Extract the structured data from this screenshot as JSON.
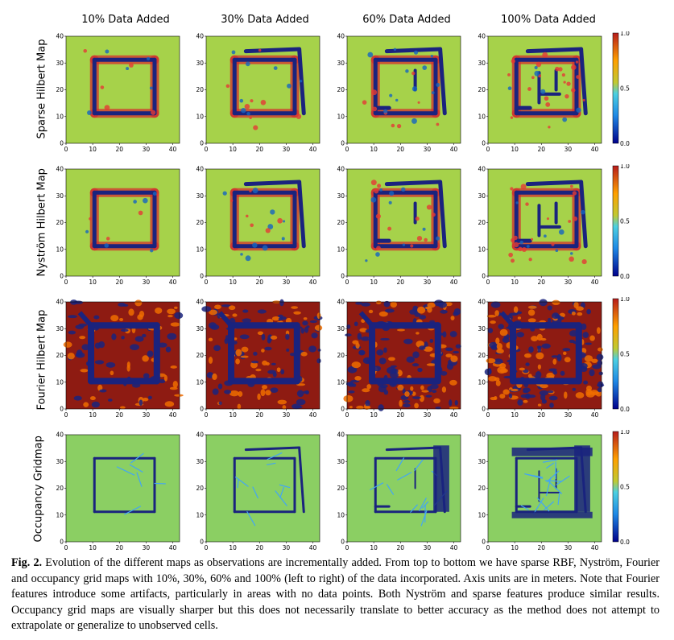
{
  "column_titles": [
    "10% Data Added",
    "30% Data Added",
    "60% Data Added",
    "100% Data Added"
  ],
  "row_labels": [
    "Sparse Hilbert Map",
    "Nyström Hilbert Map",
    "Fourier Hilbert Map",
    "Occupancy Gridmap"
  ],
  "axis_ticks": {
    "x": [
      "0",
      "10",
      "20",
      "30",
      "40"
    ],
    "y": [
      "0",
      "10",
      "20",
      "30",
      "40"
    ]
  },
  "colorbar_ticks": [
    "1.0",
    "0.5",
    "0.0"
  ],
  "colors": {
    "background_map": "#a6d24a",
    "occupied": "#1a237e",
    "free_high": "#b71c1c",
    "cell_bg": "#8bcf63"
  },
  "caption": {
    "label": "Fig. 2.",
    "text": "Evolution of the different maps as observations are incrementally added. From top to bottom we have sparse RBF, Nyström, Fourier and occupancy grid maps with 10%, 30%, 60% and 100% (left to right) of the data incorporated. Axis units are in meters. Note that Fourier features introduce some artifacts, particularly in areas with no data points. Both Nyström and sparse features produce similar results. Occupancy grid maps are visually sharper but this does not necessarily translate to better accuracy as the method does not attempt to extrapolate or generalize to unobserved cells."
  }
}
